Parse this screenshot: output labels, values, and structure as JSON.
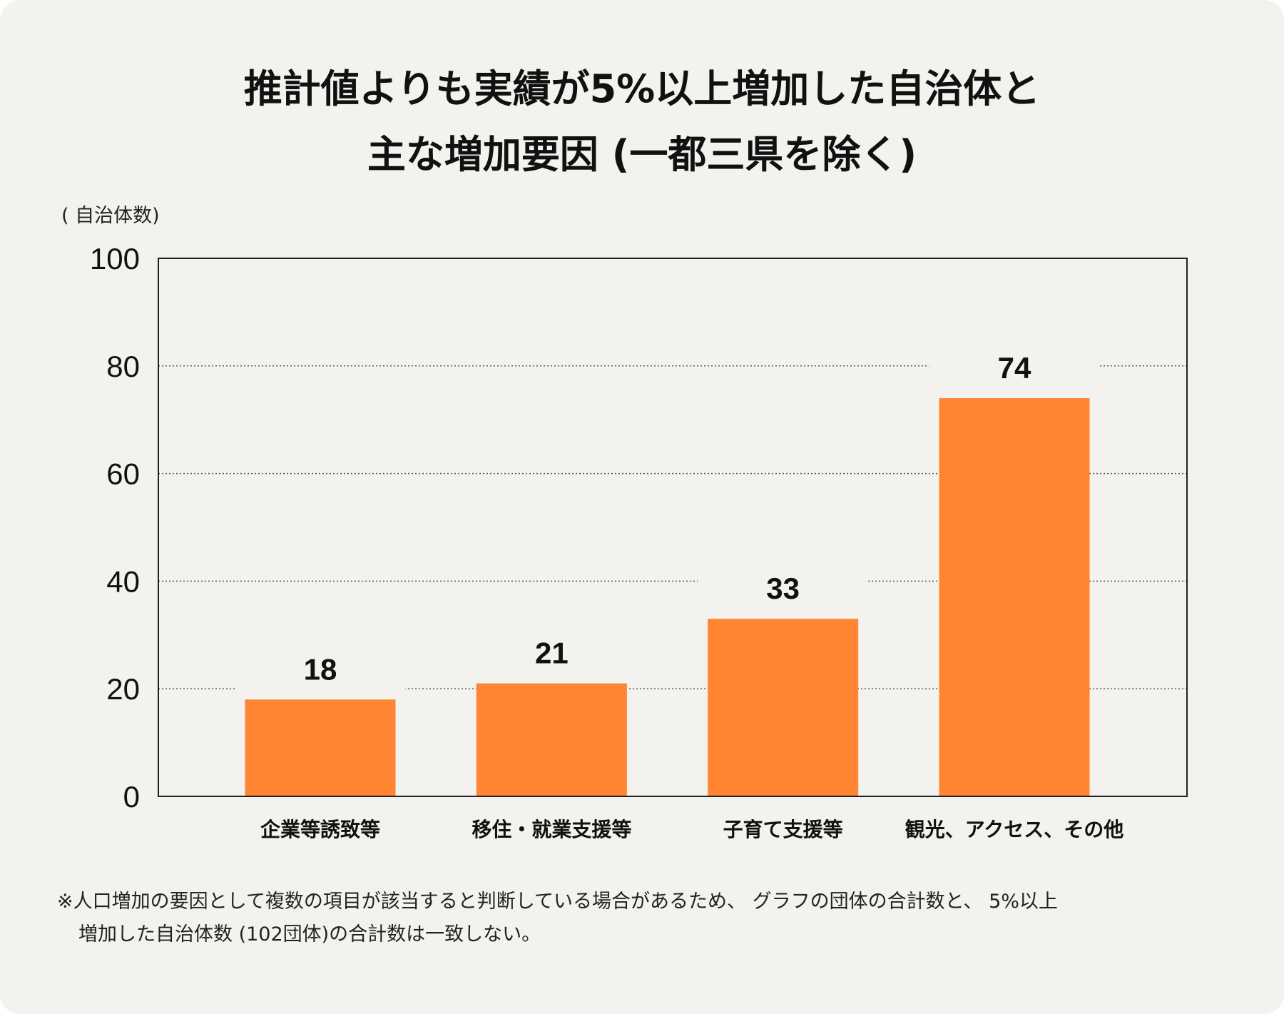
{
  "chart_data": {
    "type": "bar",
    "title": [
      "推計値よりも実績が5%以上増加した自治体と",
      "主な増加要因 (一都三県を除く)"
    ],
    "ylabel": "( 自治体数)",
    "xlabel": "",
    "categories": [
      "企業等誘致等",
      "移住・就業支援等",
      "子育て支援等",
      "観光、アクセス、その他"
    ],
    "values": [
      18,
      21,
      33,
      74
    ],
    "data_labels": [
      "18",
      "21",
      "33",
      "74"
    ],
    "ylim": [
      0,
      100
    ],
    "yticks": [
      "0",
      "20",
      "40",
      "60",
      "80",
      "100"
    ],
    "grid": "horizontal dotted",
    "bar_color": "#ff8533"
  },
  "footnote": [
    "※人口増加の要因として複数の項目が該当すると判断している場合があるため、 グラフの団体の合計数と、 5%以上",
    "増加した自治体数 (102団体)の合計数は一致しない。"
  ]
}
